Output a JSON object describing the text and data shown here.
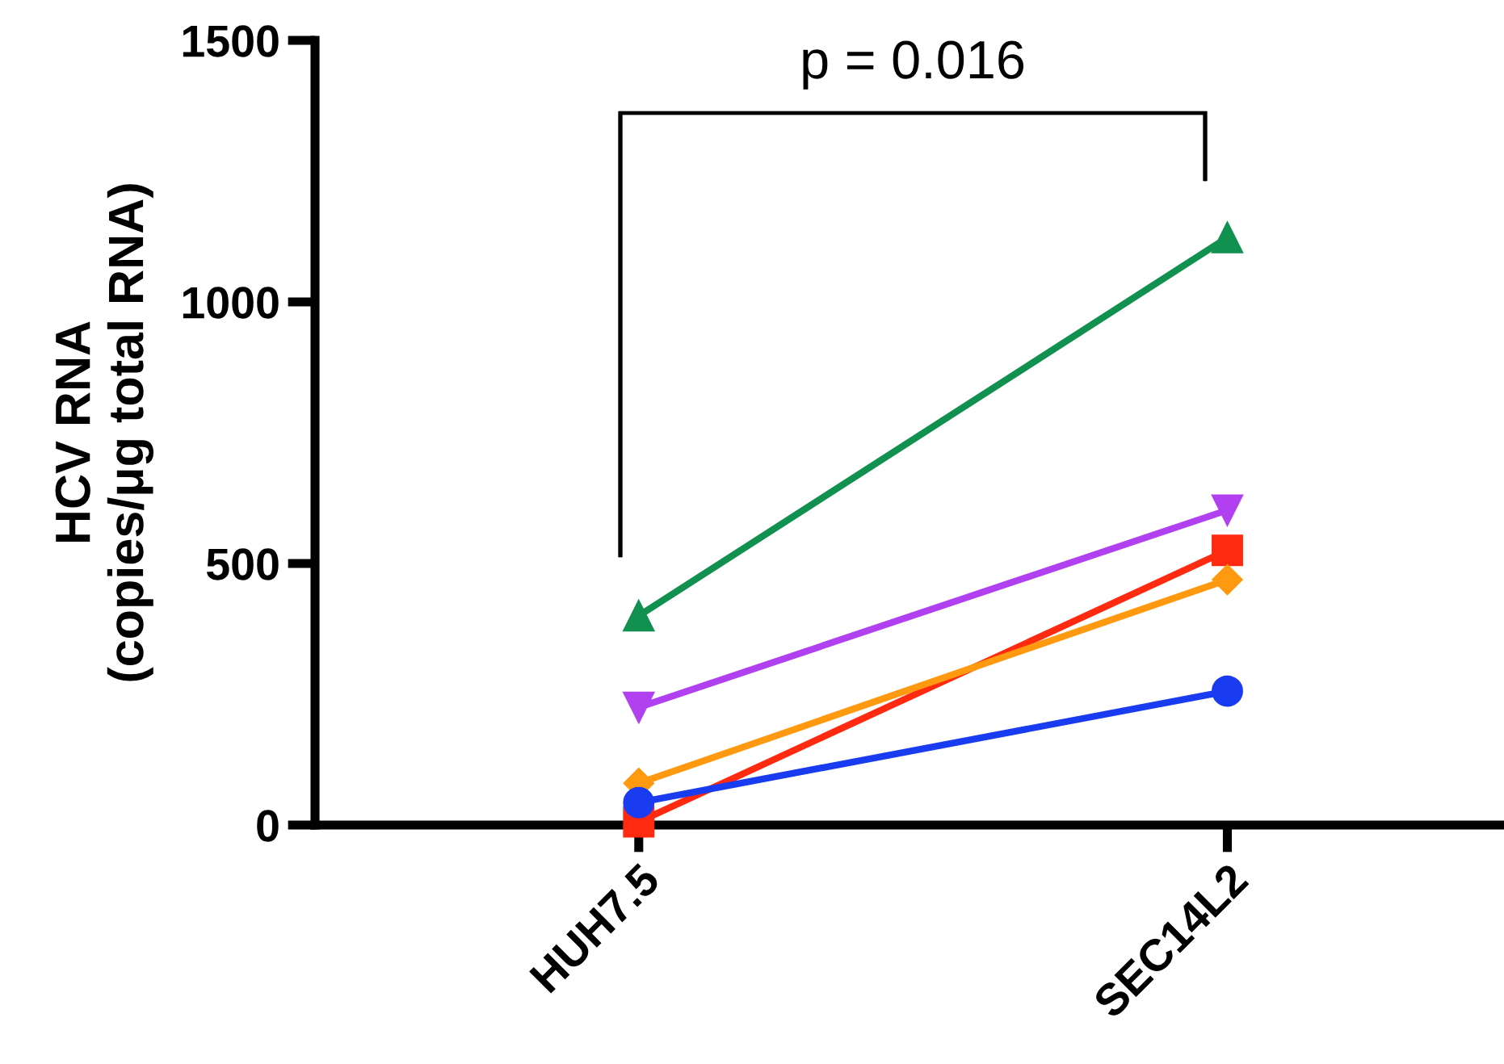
{
  "chart_data": {
    "type": "line",
    "ylabel": "HCV RNA\n(copies/μg total RNA)",
    "categories": [
      "HUH7.5",
      "SEC14L2"
    ],
    "series": [
      {
        "color": "#119150",
        "marker": "triangle",
        "values": [
          400,
          1123
        ]
      },
      {
        "color": "#b040f0",
        "marker": "triangle_down",
        "values": [
          225,
          602
        ]
      },
      {
        "color": "#ff2a10",
        "marker": "square",
        "values": [
          6,
          525
        ]
      },
      {
        "color": "#ff9a10",
        "marker": "diamond",
        "values": [
          80,
          469
        ]
      },
      {
        "color": "#1a3cf0",
        "marker": "circle",
        "values": [
          43,
          256
        ]
      }
    ],
    "ylim": [
      0,
      1500
    ],
    "yticks": [
      0,
      500,
      1000,
      1500
    ],
    "grid": false,
    "legend": false,
    "annotations": [
      "p = 0.016"
    ]
  }
}
